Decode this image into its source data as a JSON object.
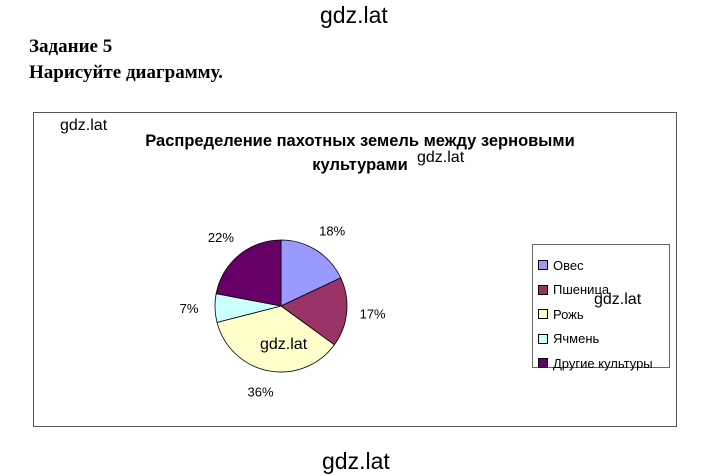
{
  "watermark": "gdz.lat",
  "task": {
    "title": "Задание 5",
    "text": "Нарисуйте диаграмму."
  },
  "chart_data": {
    "type": "pie",
    "title_line1": "Распределение пахотных земель между зерновыми",
    "title_line2": "культурами",
    "categories": [
      "Овес",
      "Пшеница",
      "Рожь",
      "Ячмень",
      "Другие культуры"
    ],
    "values": [
      18,
      17,
      36,
      7,
      22
    ],
    "labels": [
      "18%",
      "17%",
      "36%",
      "7%",
      "22%"
    ],
    "colors": [
      "#9999ff",
      "#993366",
      "#ffffcc",
      "#ccffff",
      "#660066"
    ],
    "legend_position": "right"
  }
}
